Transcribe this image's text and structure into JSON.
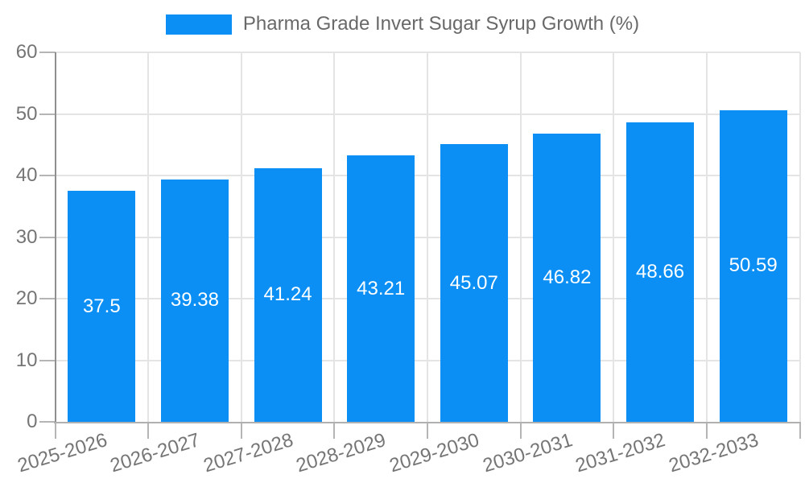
{
  "chart_data": {
    "type": "bar",
    "legend": "Pharma Grade Invert Sugar Syrup Growth (%)",
    "legend_position": "top",
    "categories": [
      "2025-2026",
      "2026-2027",
      "2027-2028",
      "2028-2029",
      "2029-2030",
      "2030-2031",
      "2031-2032",
      "2032-2033"
    ],
    "values": [
      37.5,
      39.38,
      41.24,
      43.21,
      45.07,
      46.82,
      48.66,
      50.59
    ],
    "value_labels": [
      "37.5",
      "39.38",
      "41.24",
      "43.21",
      "45.07",
      "46.82",
      "48.66",
      "50.59"
    ],
    "xlabel": "",
    "ylabel": "",
    "ylim": [
      0,
      60
    ],
    "y_ticks": [
      "0",
      "10",
      "20",
      "30",
      "40",
      "50",
      "60"
    ],
    "grid": true,
    "bar_color": "#0b8ff5",
    "grid_color": "#e4e4e4",
    "axis_text_color": "#757575",
    "value_text_color": "#ffffff"
  }
}
